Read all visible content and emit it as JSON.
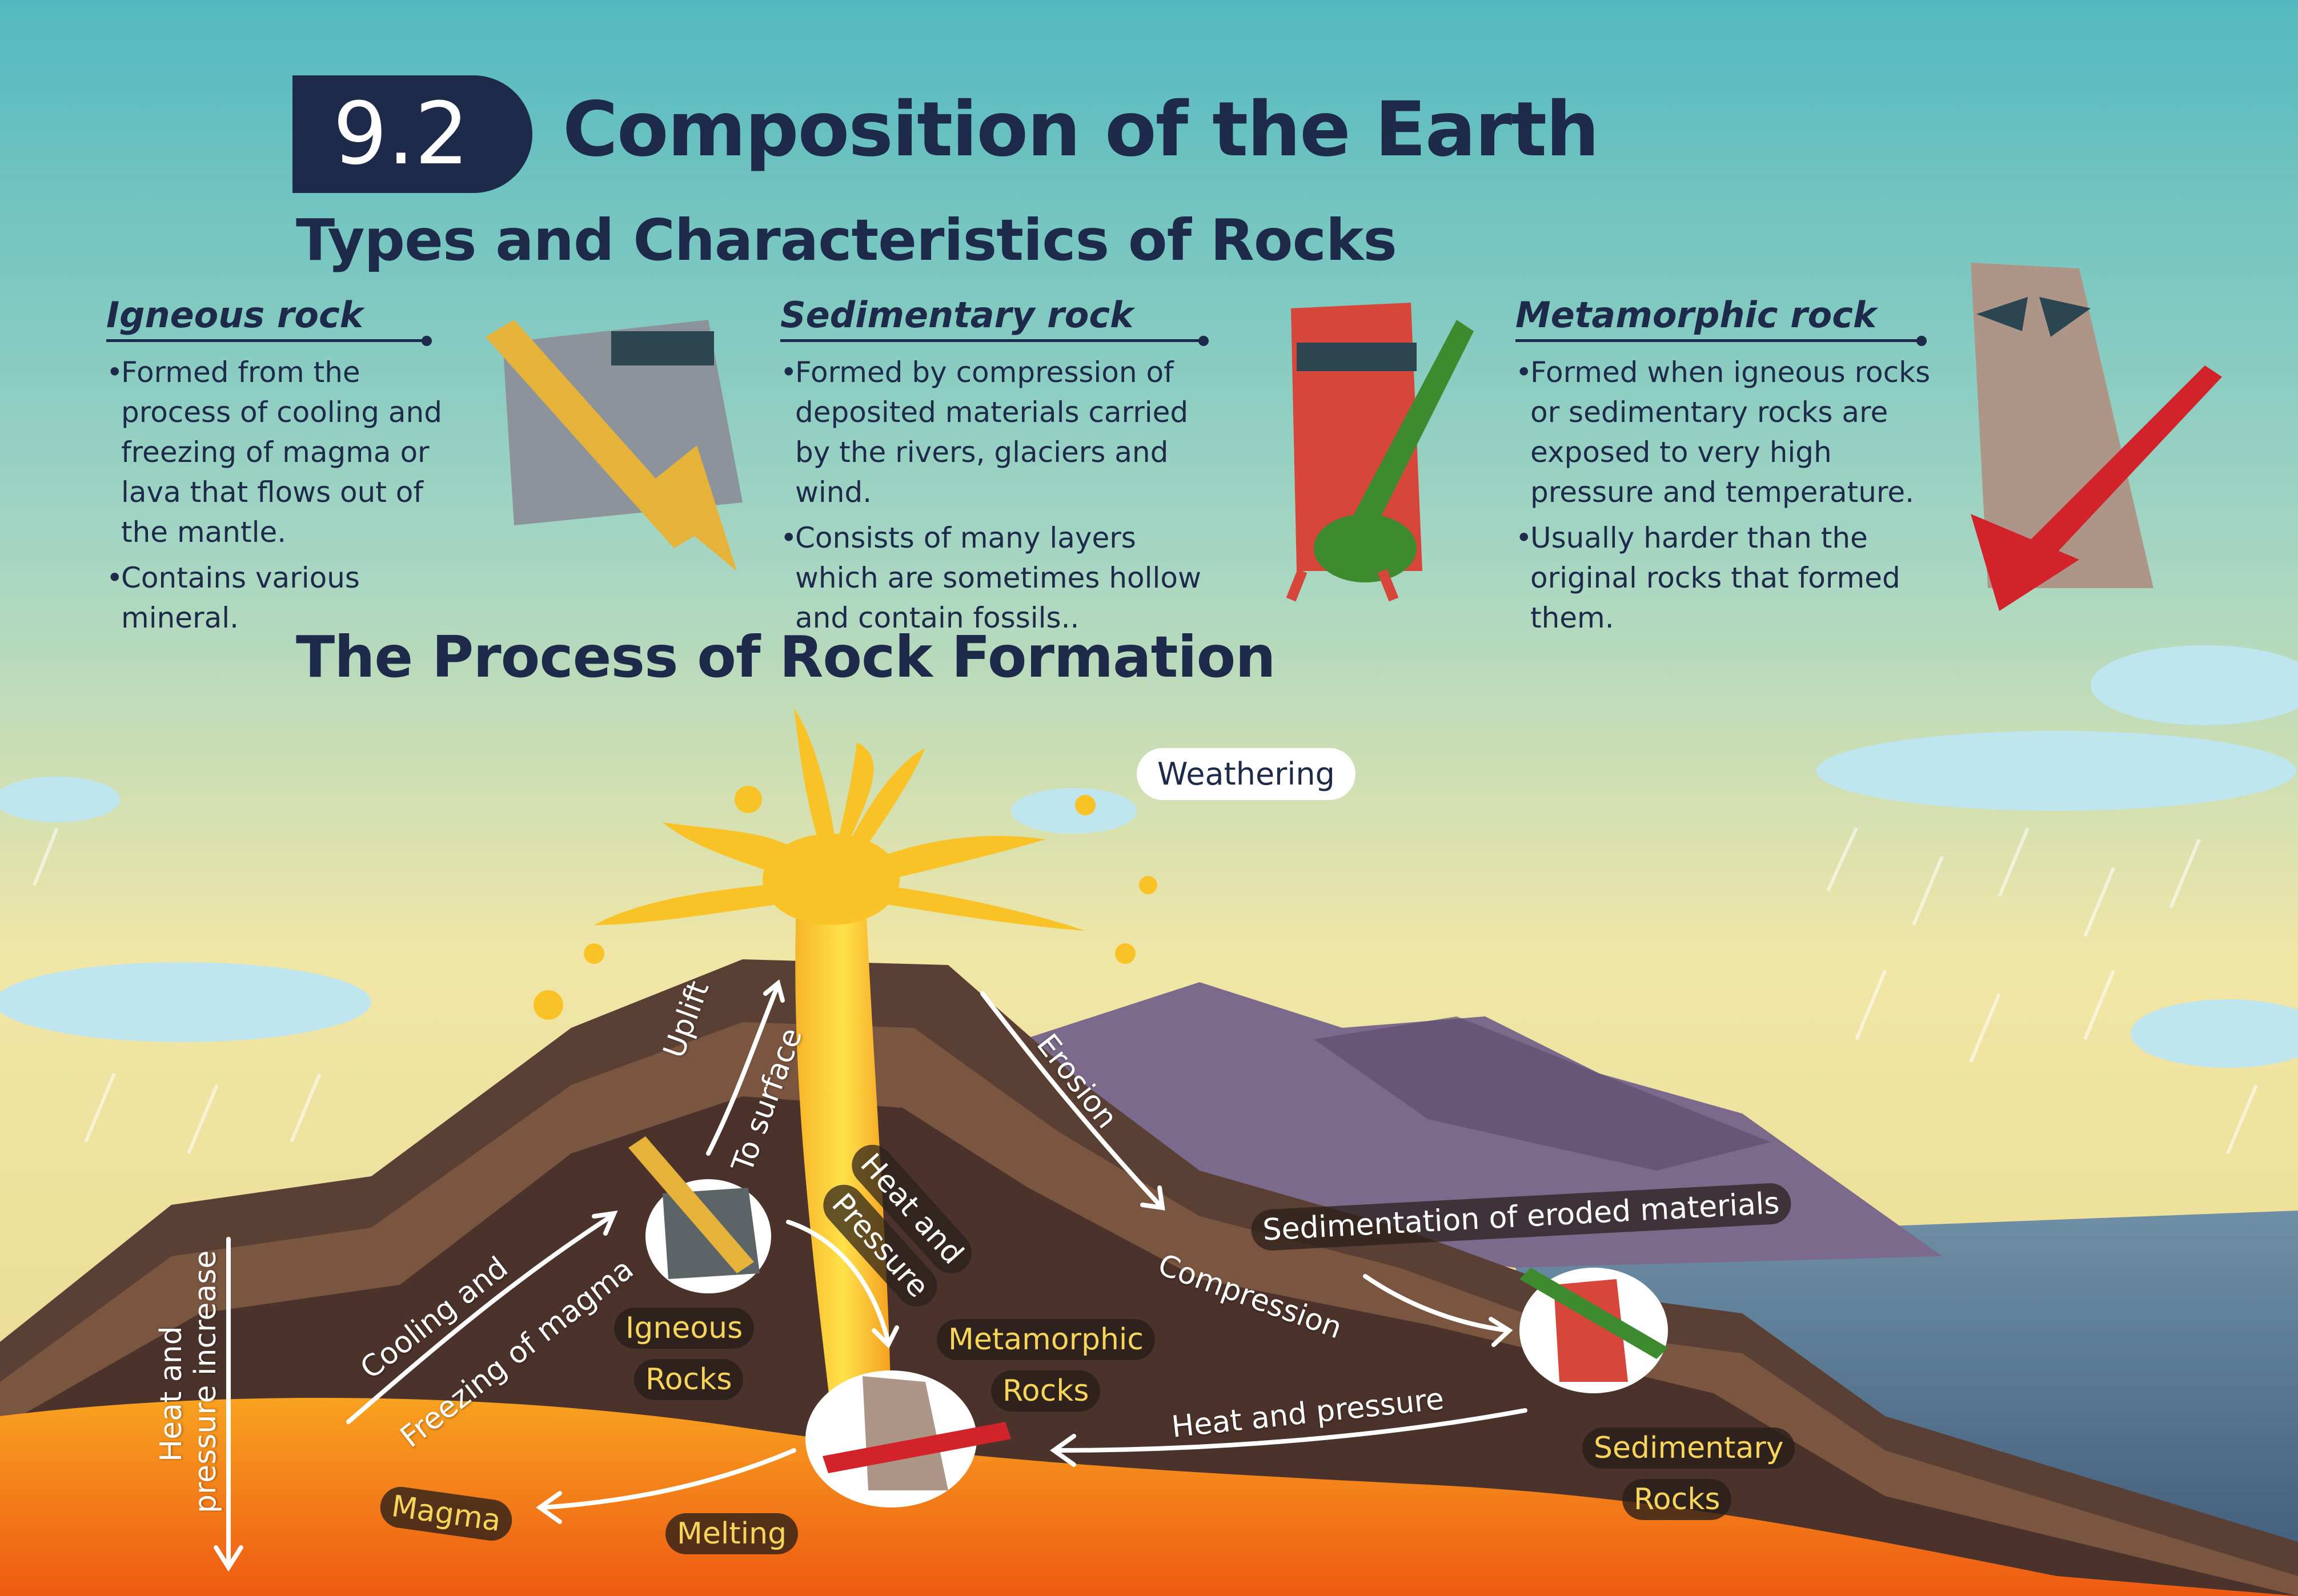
{
  "header": {
    "section_number": "9.2",
    "title": "Composition of the Earth",
    "subtitle": "Types and Characteristics  of Rocks"
  },
  "rock_types": [
    {
      "name": "Igneous rock",
      "points": [
        "Formed from the process of cooling and freezing of magma or lava that flows out of the mantle.",
        "Contains various mineral."
      ]
    },
    {
      "name": "Sedimentary rock",
      "points": [
        "Formed by compression of deposited materials carried by the rivers, glaciers and wind.",
        "Consists of many layers which are sometimes hollow and contain fossils.."
      ]
    },
    {
      "name": "Metamorphic rock",
      "points": [
        "Formed when igneous rocks or sedimentary rocks are exposed to very high pressure and temperature.",
        "Usually harder than the original rocks that formed them."
      ]
    }
  ],
  "process": {
    "title": "The Process of Rock Formation",
    "labels": {
      "weathering": "Weathering",
      "erosion": "Erosion",
      "uplift": "Uplift",
      "to_surface": "To surface",
      "heat_and": "Heat and",
      "pressure": "Pressure",
      "sedimentation": "Sedimentation of eroded materials",
      "compression": "Compression",
      "cooling_and": "Cooling and",
      "freezing_of_magma": "Freezing of magma",
      "heat_and_pressure": "Heat and pressure",
      "heat_pressure_increase_1": "Heat and",
      "heat_pressure_increase_2": "pressure increase",
      "magma": "Magma",
      "melting": "Melting",
      "igneous_1": "Igneous",
      "igneous_2": "Rocks",
      "metamorphic_1": "Metamorphic",
      "metamorphic_2": "Rocks",
      "sedimentary_1": "Sedimentary",
      "sedimentary_2": "Rocks"
    }
  },
  "colors": {
    "navy": "#1e2a4a",
    "lava": "#f7a21b",
    "sky_top": "#5fc0c4",
    "sky_bottom": "#f3e8a6",
    "label_yellow": "#f6d55a"
  },
  "icons": {
    "igneous_character": "gray-rock-guitar-character",
    "sedimentary_character": "red-rock-guitar-character",
    "metamorphic_character": "tan-rock-guitar-character"
  }
}
